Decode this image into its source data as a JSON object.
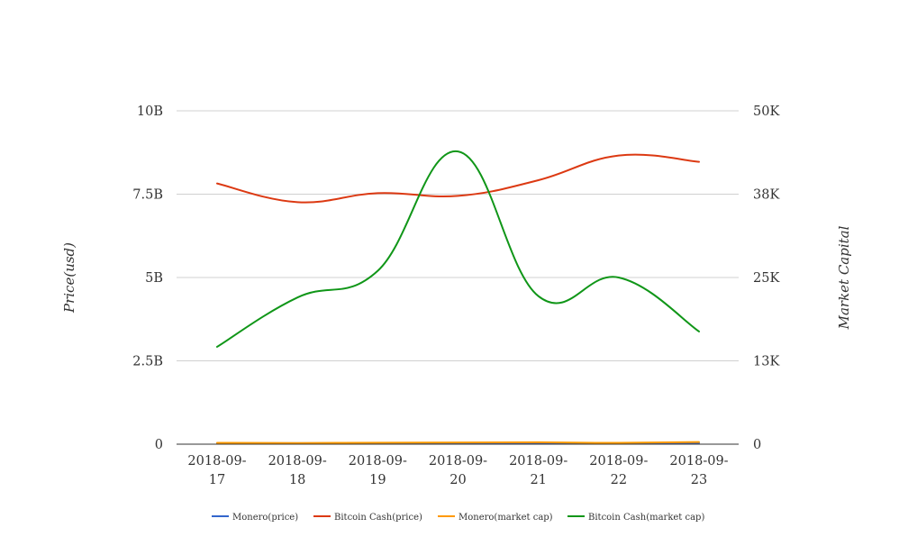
{
  "chart_data": {
    "type": "line",
    "categories": [
      [
        "2018-09-",
        "17"
      ],
      [
        "2018-09-",
        "18"
      ],
      [
        "2018-09-",
        "19"
      ],
      [
        "2018-09-",
        "20"
      ],
      [
        "2018-09-",
        "21"
      ],
      [
        "2018-09-",
        "22"
      ],
      [
        "2018-09-",
        "23"
      ]
    ],
    "y_left": {
      "label": "Price(usd)",
      "range": [
        0,
        10000000000
      ],
      "ticks": [
        0,
        2500000000,
        5000000000,
        7500000000,
        10000000000
      ],
      "tick_labels": [
        "0",
        "2.5B",
        "5B",
        "7.5B",
        "10B"
      ]
    },
    "y_right": {
      "label": "Market Capital",
      "range": [
        0,
        50000
      ],
      "ticks": [
        0,
        12500,
        25000,
        37500,
        50000
      ],
      "tick_labels": [
        "0",
        "13K",
        "25K",
        "38K",
        "50K"
      ]
    },
    "grid": true,
    "legend_position": "bottom",
    "series": [
      {
        "name": "Monero(price)",
        "axis": "left",
        "color": "#3366cc",
        "values": [
          30000000,
          30000000,
          30000000,
          30000000,
          30000000,
          30000000,
          30000000
        ]
      },
      {
        "name": "Bitcoin Cash(price)",
        "axis": "left",
        "color": "#dc3912",
        "values": [
          7820000000,
          7260000000,
          7530000000,
          7450000000,
          7920000000,
          8660000000,
          8470000000
        ]
      },
      {
        "name": "Monero(market cap)",
        "axis": "right",
        "color": "#ff9900",
        "values": [
          200,
          180,
          220,
          250,
          280,
          200,
          330
        ]
      },
      {
        "name": "Bitcoin Cash(market cap)",
        "axis": "right",
        "color": "#109618",
        "values": [
          14600,
          22000,
          26000,
          43900,
          22200,
          25000,
          16900
        ]
      }
    ]
  }
}
